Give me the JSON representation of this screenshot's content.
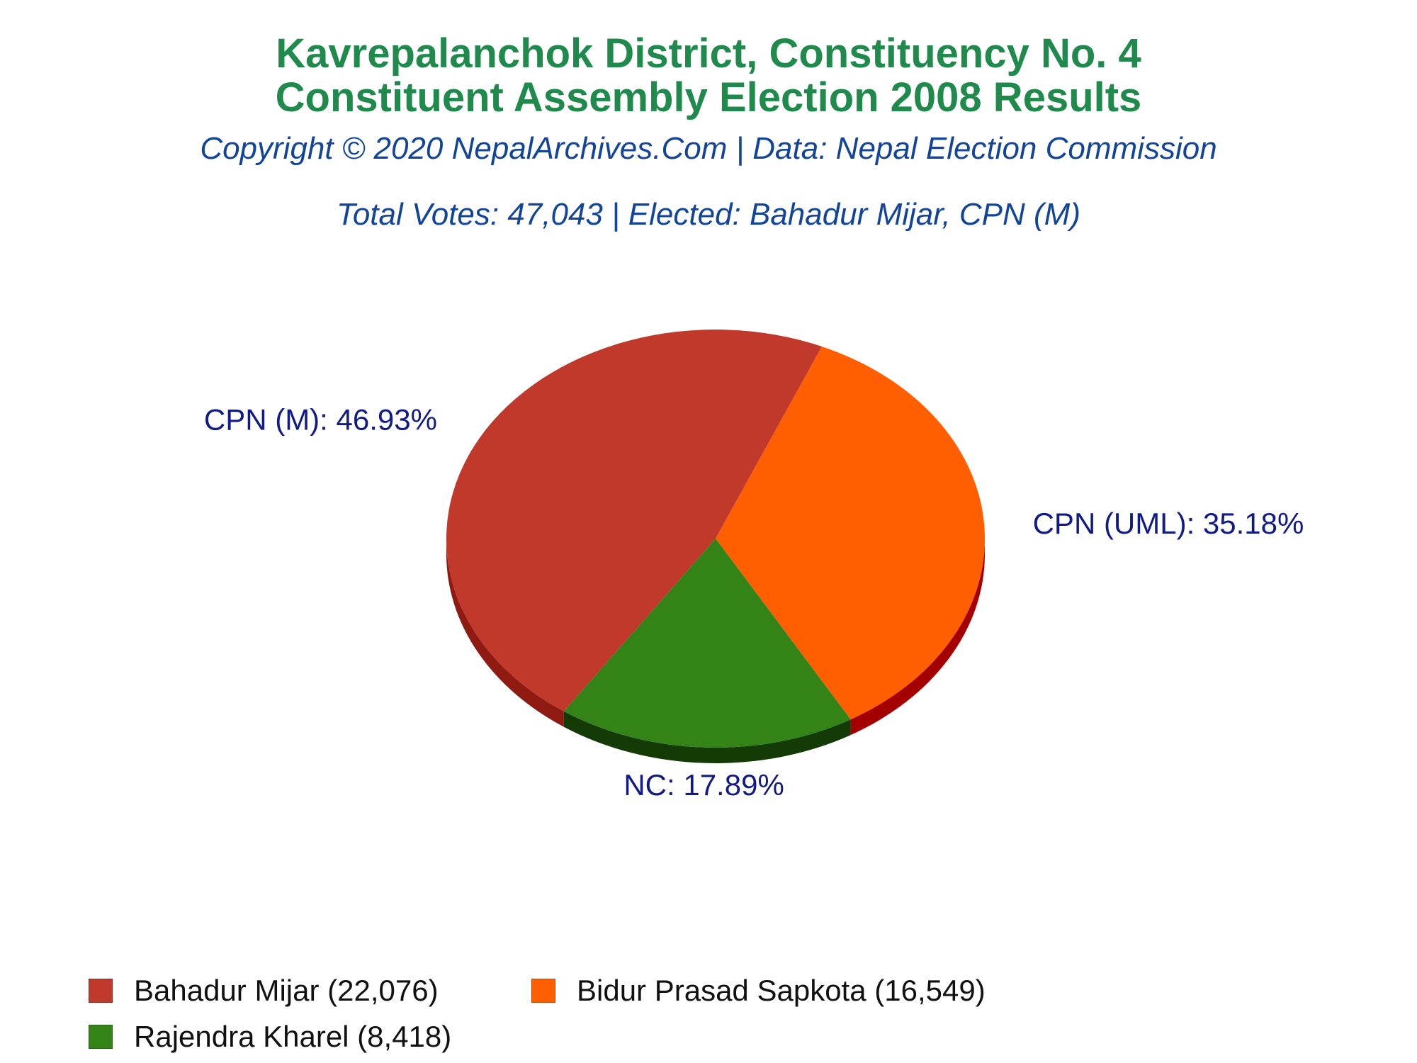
{
  "title": {
    "line1": "Kavrepalanchok District, Constituency No. 4",
    "line2": "Constituent Assembly Election 2008 Results"
  },
  "copyright": "Copyright © 2020 NepalArchives.Com | Data: Nepal Election Commission",
  "summary": "Total Votes: 47,043 | Elected: Bahadur Mijar, CPN (M)",
  "chart_data": {
    "type": "pie",
    "title": "Kavrepalanchok District, Constituency No. 4 Constituent Assembly Election 2008 Results",
    "total_votes": 47043,
    "slices": [
      {
        "party": "CPN (M)",
        "candidate": "Bahadur Mijar",
        "votes": 22076,
        "percent": 46.93,
        "label": "CPN (M): 46.93%",
        "color": "#c0392b",
        "side_color": "#8e1a12"
      },
      {
        "party": "CPN (UML)",
        "candidate": "Bidur Prasad Sapkota",
        "votes": 16549,
        "percent": 35.18,
        "label": "CPN (UML): 35.18%",
        "color": "#ff5f00",
        "side_color": "#a50000"
      },
      {
        "party": "NC",
        "candidate": "Rajendra Kharel",
        "votes": 8418,
        "percent": 17.89,
        "label": "NC: 17.89%",
        "color": "#338317",
        "side_color": "#143a06"
      }
    ],
    "legend": [
      {
        "text": "Bahadur Mijar (22,076)",
        "color": "#c0392b"
      },
      {
        "text": "Bidur Prasad Sapkota (16,549)",
        "color": "#ff5f00"
      },
      {
        "text": "Rajendra Kharel (8,418)",
        "color": "#338317"
      }
    ],
    "legend_position": "bottom"
  }
}
